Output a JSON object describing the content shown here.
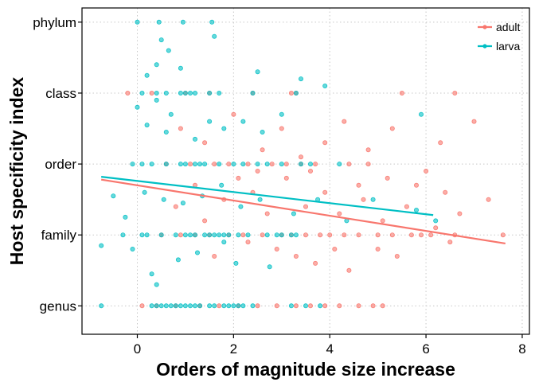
{
  "chart_data": {
    "type": "scatter",
    "title": "",
    "xlabel": "Orders of magnitude size increase",
    "ylabel": "Host specificity index",
    "xlim": [
      -1.15,
      8.15
    ],
    "ylim": [
      0.6,
      5.2
    ],
    "x_ticks": [
      0,
      2,
      4,
      6,
      8
    ],
    "x_tick_labels": [
      "0",
      "2",
      "4",
      "6",
      "8"
    ],
    "y_ticks": [
      1,
      2,
      3,
      4,
      5
    ],
    "y_tick_labels": [
      "genus",
      "family",
      "order",
      "class",
      "phylum"
    ],
    "grid": true,
    "grid_style": "dotted",
    "legend_position": "top-right",
    "series": [
      {
        "name": "adult",
        "color": "#F8766D",
        "points": [
          [
            0.1,
            1
          ],
          [
            0.4,
            1
          ],
          [
            0.8,
            1
          ],
          [
            1.3,
            1
          ],
          [
            1.7,
            1
          ],
          [
            2.1,
            1
          ],
          [
            2.5,
            1
          ],
          [
            2.9,
            1
          ],
          [
            3.3,
            1
          ],
          [
            3.6,
            1
          ],
          [
            3.9,
            1
          ],
          [
            4.2,
            1
          ],
          [
            4.6,
            1
          ],
          [
            4.9,
            1
          ],
          [
            5.1,
            1
          ],
          [
            0.5,
            2
          ],
          [
            0.9,
            2
          ],
          [
            1.2,
            2
          ],
          [
            1.5,
            2
          ],
          [
            1.9,
            2
          ],
          [
            2.2,
            2
          ],
          [
            2.6,
            2
          ],
          [
            3.0,
            2
          ],
          [
            3.2,
            2
          ],
          [
            3.5,
            2
          ],
          [
            3.8,
            2
          ],
          [
            4.0,
            2
          ],
          [
            4.3,
            2
          ],
          [
            4.6,
            2
          ],
          [
            5.0,
            2
          ],
          [
            5.3,
            2
          ],
          [
            5.7,
            2
          ],
          [
            6.1,
            2
          ],
          [
            6.6,
            2
          ],
          [
            7.6,
            2
          ],
          [
            0.6,
            3
          ],
          [
            1.1,
            3
          ],
          [
            1.6,
            3
          ],
          [
            1.9,
            3
          ],
          [
            2.3,
            3
          ],
          [
            2.8,
            3
          ],
          [
            3.1,
            3
          ],
          [
            3.4,
            3
          ],
          [
            3.7,
            3
          ],
          [
            4.4,
            3
          ],
          [
            4.8,
            3
          ],
          [
            -0.2,
            4
          ],
          [
            0.3,
            4
          ],
          [
            1.0,
            4
          ],
          [
            1.5,
            4
          ],
          [
            2.4,
            4
          ],
          [
            3.2,
            4
          ],
          [
            3.3,
            4
          ],
          [
            5.5,
            4
          ],
          [
            6.6,
            4
          ],
          [
            0.9,
            3.5
          ],
          [
            1.4,
            3.3
          ],
          [
            2.0,
            3.7
          ],
          [
            2.6,
            3.2
          ],
          [
            3.0,
            3.5
          ],
          [
            3.4,
            3.1
          ],
          [
            3.9,
            3.3
          ],
          [
            4.3,
            3.6
          ],
          [
            4.8,
            3.2
          ],
          [
            5.3,
            3.5
          ],
          [
            5.8,
            2.7
          ],
          [
            6.0,
            2.9
          ],
          [
            6.3,
            3.3
          ],
          [
            7.0,
            3.6
          ],
          [
            1.2,
            2.7
          ],
          [
            1.8,
            2.5
          ],
          [
            2.4,
            2.6
          ],
          [
            2.7,
            2.3
          ],
          [
            3.1,
            2.8
          ],
          [
            3.5,
            2.4
          ],
          [
            3.9,
            2.6
          ],
          [
            4.2,
            2.3
          ],
          [
            4.7,
            2.5
          ],
          [
            5.1,
            2.2
          ],
          [
            5.6,
            2.4
          ],
          [
            6.2,
            2.1
          ],
          [
            6.7,
            2.3
          ],
          [
            7.3,
            2.5
          ],
          [
            1.6,
            1.7
          ],
          [
            2.3,
            1.9
          ],
          [
            2.9,
            1.8
          ],
          [
            3.3,
            1.7
          ],
          [
            3.7,
            1.6
          ],
          [
            4.1,
            1.8
          ],
          [
            4.4,
            1.5
          ],
          [
            5.0,
            1.8
          ],
          [
            5.4,
            1.7
          ],
          [
            5.9,
            2.0
          ],
          [
            6.5,
            1.9
          ],
          [
            0.8,
            2.4
          ],
          [
            1.4,
            2.2
          ],
          [
            2.1,
            2.8
          ],
          [
            2.5,
            2.9
          ],
          [
            3.6,
            2.9
          ],
          [
            4.6,
            2.7
          ],
          [
            5.2,
            2.8
          ],
          [
            6.4,
            2.6
          ]
        ],
        "trend": {
          "x": [
            -0.75,
            7.65
          ],
          "y": [
            2.78,
            1.88
          ]
        }
      },
      {
        "name": "larva",
        "color": "#00BFC4",
        "points": [
          [
            -0.75,
            1
          ],
          [
            0.3,
            1
          ],
          [
            0.4,
            1
          ],
          [
            0.5,
            1
          ],
          [
            0.6,
            1
          ],
          [
            0.7,
            1
          ],
          [
            0.8,
            1
          ],
          [
            0.9,
            1
          ],
          [
            1.0,
            1
          ],
          [
            1.1,
            1
          ],
          [
            1.2,
            1
          ],
          [
            1.3,
            1
          ],
          [
            1.5,
            1
          ],
          [
            1.6,
            1
          ],
          [
            1.8,
            1
          ],
          [
            1.9,
            1
          ],
          [
            2.0,
            1
          ],
          [
            2.1,
            1
          ],
          [
            2.2,
            1
          ],
          [
            2.4,
            1
          ],
          [
            3.2,
            1
          ],
          [
            3.5,
            1
          ],
          [
            3.8,
            1
          ],
          [
            -0.3,
            2
          ],
          [
            0.1,
            2
          ],
          [
            0.2,
            2
          ],
          [
            0.5,
            2
          ],
          [
            0.8,
            2
          ],
          [
            1.0,
            2
          ],
          [
            1.1,
            2
          ],
          [
            1.2,
            2
          ],
          [
            1.4,
            2
          ],
          [
            1.5,
            2
          ],
          [
            1.6,
            2
          ],
          [
            1.7,
            2
          ],
          [
            1.8,
            2
          ],
          [
            1.9,
            2
          ],
          [
            2.1,
            2
          ],
          [
            2.3,
            2
          ],
          [
            2.7,
            2
          ],
          [
            2.9,
            2
          ],
          [
            3.0,
            2
          ],
          [
            3.2,
            2
          ],
          [
            3.3,
            2
          ],
          [
            -0.1,
            3
          ],
          [
            0.1,
            3
          ],
          [
            0.3,
            3
          ],
          [
            0.6,
            3
          ],
          [
            0.9,
            3
          ],
          [
            1.0,
            3
          ],
          [
            1.2,
            3
          ],
          [
            1.3,
            3
          ],
          [
            1.4,
            3
          ],
          [
            1.7,
            3
          ],
          [
            2.0,
            3
          ],
          [
            2.2,
            3
          ],
          [
            2.5,
            3
          ],
          [
            2.7,
            3
          ],
          [
            3.0,
            3
          ],
          [
            3.4,
            3
          ],
          [
            3.6,
            3
          ],
          [
            4.2,
            3
          ],
          [
            0.1,
            4
          ],
          [
            0.4,
            4
          ],
          [
            0.6,
            4
          ],
          [
            0.9,
            4
          ],
          [
            1.0,
            4
          ],
          [
            1.1,
            4
          ],
          [
            1.2,
            4
          ],
          [
            1.5,
            4
          ],
          [
            1.7,
            4
          ],
          [
            2.4,
            4
          ],
          [
            3.3,
            4
          ],
          [
            0.0,
            5
          ],
          [
            0.45,
            5
          ],
          [
            0.95,
            5
          ],
          [
            1.55,
            5
          ],
          [
            -0.75,
            1.85
          ],
          [
            0.5,
            4.75
          ],
          [
            0.65,
            4.6
          ],
          [
            1.6,
            4.8
          ],
          [
            0.4,
            4.4
          ],
          [
            0.9,
            4.35
          ],
          [
            0.2,
            4.25
          ],
          [
            2.5,
            4.3
          ],
          [
            3.4,
            4.2
          ],
          [
            3.9,
            4.1
          ],
          [
            0.2,
            3.55
          ],
          [
            0.6,
            3.45
          ],
          [
            1.2,
            3.35
          ],
          [
            1.5,
            3.6
          ],
          [
            1.8,
            3.5
          ],
          [
            2.2,
            3.6
          ],
          [
            2.6,
            3.45
          ],
          [
            3.0,
            3.7
          ],
          [
            0.0,
            3.8
          ],
          [
            0.4,
            3.9
          ],
          [
            0.7,
            3.7
          ],
          [
            5.9,
            3.7
          ],
          [
            0.15,
            2.6
          ],
          [
            0.55,
            2.5
          ],
          [
            0.95,
            2.45
          ],
          [
            1.35,
            2.55
          ],
          [
            1.75,
            2.7
          ],
          [
            2.15,
            2.4
          ],
          [
            2.55,
            2.5
          ],
          [
            3.25,
            2.3
          ],
          [
            3.75,
            2.5
          ],
          [
            4.35,
            2.2
          ],
          [
            4.9,
            2.5
          ],
          [
            5.8,
            2.35
          ],
          [
            6.2,
            2.2
          ],
          [
            -0.5,
            2.55
          ],
          [
            -0.25,
            2.25
          ],
          [
            0.3,
            1.45
          ],
          [
            1.25,
            1.75
          ],
          [
            2.05,
            1.6
          ],
          [
            2.75,
            1.55
          ],
          [
            -0.1,
            1.8
          ],
          [
            0.85,
            1.65
          ],
          [
            1.8,
            1.9
          ],
          [
            0.4,
            1.3
          ]
        ],
        "trend": {
          "x": [
            -0.75,
            6.15
          ],
          "y": [
            2.82,
            2.28
          ]
        }
      }
    ]
  }
}
